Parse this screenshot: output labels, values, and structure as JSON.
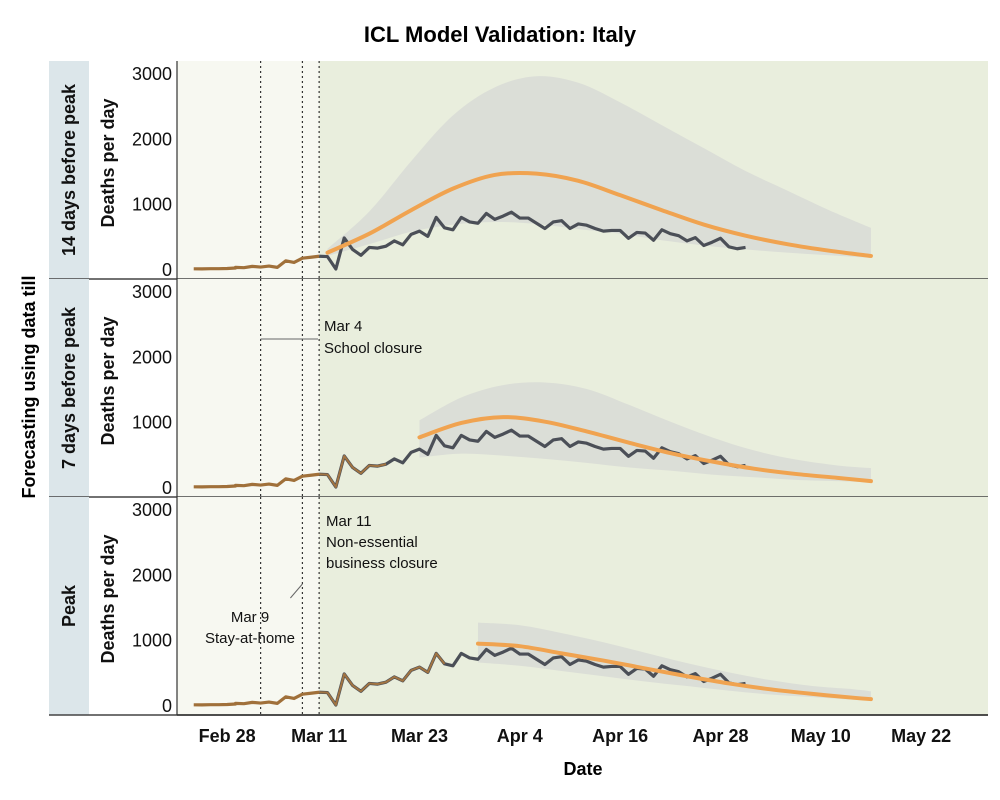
{
  "chart_data": {
    "type": "line",
    "title": "ICL Model Validation: Italy",
    "xlabel": "Date",
    "ylabel": "Deaths per day",
    "outer_ylabel": "Forecasting using data till",
    "x_ticks": [
      "Feb 28",
      "Mar 11",
      "Mar 23",
      "Apr 4",
      "Apr 16",
      "Apr 28",
      "May 10",
      "May 22"
    ],
    "y_ticks": [
      "0",
      "1000",
      "2000",
      "3000"
    ],
    "ylim": [
      0,
      3000
    ],
    "xlim_days_from_feb22": [
      0,
      97
    ],
    "colors": {
      "observed": "#4b4f57",
      "observed_pre": "#a0703a",
      "forecast": "#f0a350",
      "band": "#d9dcd6",
      "panel_bg": "#e9eedd",
      "label_bg": "#dce6ea"
    },
    "panels": [
      {
        "label": "14 days before peak",
        "forecast_start": "Mar 12"
      },
      {
        "label": "7 days before peak",
        "forecast_start": "Mar 19"
      },
      {
        "label": "Peak",
        "forecast_start": "Mar 26"
      }
    ],
    "observed": {
      "name": "Observed deaths",
      "dates": [
        "Feb 24",
        "Feb 25",
        "Feb 26",
        "Feb 27",
        "Feb 28",
        "Feb 29",
        "Mar 1",
        "Mar 2",
        "Mar 3",
        "Mar 4",
        "Mar 5",
        "Mar 6",
        "Mar 7",
        "Mar 8",
        "Mar 9",
        "Mar 10",
        "Mar 11",
        "Mar 12",
        "Mar 13",
        "Mar 14",
        "Mar 15",
        "Mar 16",
        "Mar 17",
        "Mar 18",
        "Mar 19",
        "Mar 20",
        "Mar 21",
        "Mar 22",
        "Mar 23",
        "Mar 24",
        "Mar 25",
        "Mar 26",
        "Mar 27",
        "Mar 28",
        "Mar 29",
        "Mar 30",
        "Mar 31",
        "Apr 1",
        "Apr 2",
        "Apr 3",
        "Apr 4",
        "Apr 5",
        "Apr 6",
        "Apr 7",
        "Apr 8",
        "Apr 9",
        "Apr 10",
        "Apr 11",
        "Apr 12",
        "Apr 13",
        "Apr 14",
        "Apr 15",
        "Apr 16",
        "Apr 17",
        "Apr 18",
        "Apr 19",
        "Apr 20",
        "Apr 21",
        "Apr 22",
        "Apr 23",
        "Apr 24",
        "Apr 25",
        "Apr 26",
        "Apr 27",
        "Apr 28",
        "Apr 29",
        "Apr 30",
        "May 1"
      ],
      "values": [
        3,
        2,
        5,
        5,
        8,
        15,
        25,
        20,
        40,
        30,
        45,
        25,
        125,
        100,
        165,
        180,
        195,
        190,
        0,
        475,
        300,
        210,
        330,
        320,
        350,
        430,
        370,
        530,
        580,
        500,
        790,
        630,
        600,
        790,
        720,
        700,
        850,
        760,
        810,
        870,
        780,
        780,
        700,
        620,
        720,
        740,
        620,
        690,
        670,
        620,
        580,
        590,
        590,
        470,
        560,
        550,
        440,
        600,
        540,
        510,
        430,
        480,
        360,
        410,
        470,
        340,
        310,
        330
      ]
    },
    "forecasts": [
      {
        "panel": "14 days before peak",
        "median": {
          "dates": [
            "Mar 12",
            "Mar 17",
            "Mar 22",
            "Mar 27",
            "Apr 1",
            "Apr 6",
            "Apr 11",
            "Apr 16",
            "Apr 21",
            "Apr 26",
            "May 1",
            "May 6",
            "May 11",
            "May 16"
          ],
          "values": [
            250,
            540,
            900,
            1230,
            1440,
            1460,
            1350,
            1130,
            900,
            680,
            510,
            380,
            280,
            200
          ]
        },
        "lower": {
          "dates": [
            "Mar 12",
            "Mar 17",
            "Mar 22",
            "Mar 27",
            "Apr 1",
            "Apr 6",
            "Apr 11",
            "Apr 16",
            "Apr 21",
            "Apr 26",
            "May 1",
            "May 6",
            "May 11",
            "May 16"
          ],
          "values": [
            200,
            380,
            570,
            680,
            720,
            690,
            610,
            540,
            440,
            360,
            300,
            250,
            210,
            170
          ]
        },
        "upper": {
          "dates": [
            "Mar 12",
            "Mar 17",
            "Mar 22",
            "Mar 27",
            "Apr 1",
            "Apr 6",
            "Apr 11",
            "Apr 16",
            "Apr 21",
            "Apr 26",
            "May 1",
            "May 6",
            "May 11",
            "May 16"
          ],
          "values": [
            310,
            880,
            1650,
            2350,
            2780,
            2950,
            2850,
            2550,
            2200,
            1850,
            1500,
            1200,
            900,
            630
          ]
        }
      },
      {
        "panel": "7 days before peak",
        "median": {
          "dates": [
            "Mar 23",
            "Mar 28",
            "Apr 2",
            "Apr 7",
            "Apr 12",
            "Apr 17",
            "Apr 22",
            "Apr 27",
            "May 2",
            "May 7",
            "May 12",
            "May 16"
          ],
          "values": [
            760,
            980,
            1070,
            1000,
            850,
            680,
            520,
            390,
            280,
            200,
            140,
            90
          ]
        },
        "lower": {
          "dates": [
            "Mar 23",
            "Mar 28",
            "Apr 2",
            "Apr 7",
            "Apr 12",
            "Apr 17",
            "Apr 22",
            "Apr 27",
            "May 2",
            "May 7",
            "May 12",
            "May 16"
          ],
          "values": [
            450,
            510,
            480,
            430,
            370,
            300,
            250,
            190,
            150,
            110,
            90,
            70
          ]
        },
        "upper": {
          "dates": [
            "Mar 23",
            "Mar 28",
            "Apr 2",
            "Apr 7",
            "Apr 12",
            "Apr 17",
            "Apr 22",
            "Apr 27",
            "May 2",
            "May 7",
            "May 12",
            "May 16"
          ],
          "values": [
            1020,
            1370,
            1560,
            1600,
            1500,
            1260,
            1000,
            760,
            560,
            420,
            330,
            290
          ]
        }
      },
      {
        "panel": "Peak",
        "median": {
          "dates": [
            "Mar 30",
            "Apr 4",
            "Apr 9",
            "Apr 14",
            "Apr 19",
            "Apr 24",
            "Apr 29",
            "May 4",
            "May 9",
            "May 14",
            "May 16"
          ],
          "values": [
            940,
            900,
            790,
            680,
            560,
            440,
            330,
            240,
            170,
            110,
            90
          ]
        },
        "lower": {
          "dates": [
            "Mar 30",
            "Apr 4",
            "Apr 9",
            "Apr 14",
            "Apr 19",
            "Apr 24",
            "Apr 29",
            "May 4",
            "May 9",
            "May 14",
            "May 16"
          ],
          "values": [
            650,
            600,
            520,
            440,
            360,
            290,
            220,
            160,
            120,
            80,
            70
          ]
        },
        "upper": {
          "dates": [
            "Mar 30",
            "Apr 4",
            "Apr 9",
            "Apr 14",
            "Apr 19",
            "Apr 24",
            "Apr 29",
            "May 4",
            "May 9",
            "May 14",
            "May 16"
          ],
          "values": [
            1260,
            1220,
            1100,
            960,
            800,
            640,
            500,
            380,
            290,
            240,
            210
          ]
        }
      }
    ],
    "interventions": [
      {
        "date": "Mar 4",
        "label": "Mar 4",
        "text": "School closure"
      },
      {
        "date": "Mar 9",
        "label": "Mar 9",
        "text": "Stay-at-home"
      },
      {
        "date": "Mar 11",
        "label": "Mar 11",
        "text": "Non-essential business closure",
        "lines": [
          "Non-essential",
          "business closure"
        ]
      }
    ]
  }
}
